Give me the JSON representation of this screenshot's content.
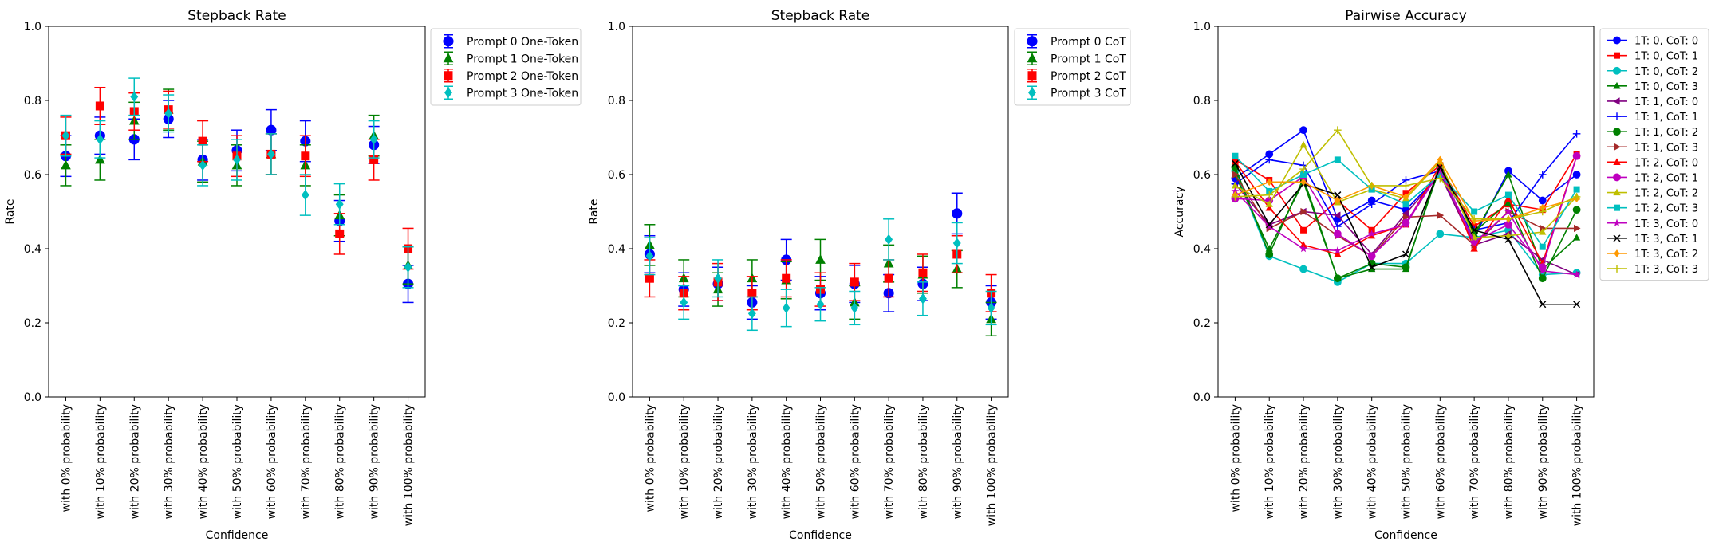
{
  "chart_data": [
    {
      "type": "scatter",
      "title": "Stepback Rate",
      "xlabel": "Confidence",
      "ylabel": "Rate",
      "ylim": [
        0,
        1
      ],
      "yticks": [
        "0.0",
        "0.2",
        "0.4",
        "0.6",
        "0.8",
        "1.0"
      ],
      "legend_position": "outside-right",
      "error_bars": true,
      "categories": [
        "with 0% probability",
        "with 10% probability",
        "with 20% probability",
        "with 30% probability",
        "with 40% probability",
        "with 50% probability",
        "with 60% probability",
        "with 70% probability",
        "with 80% probability",
        "with 90% probability",
        "with 100% probability"
      ],
      "series": [
        {
          "name": "Prompt 0 One-Token",
          "color": "#0000ff",
          "marker": "circle",
          "values": [
            0.65,
            0.705,
            0.695,
            0.75,
            0.64,
            0.665,
            0.72,
            0.69,
            0.475,
            0.68,
            0.305
          ],
          "errors": [
            0.055,
            0.05,
            0.055,
            0.05,
            0.055,
            0.055,
            0.055,
            0.055,
            0.055,
            0.05,
            0.05
          ]
        },
        {
          "name": "Prompt 1 One-Token",
          "color": "#008000",
          "marker": "triangle",
          "values": [
            0.625,
            0.64,
            0.745,
            0.775,
            0.635,
            0.625,
            0.655,
            0.625,
            0.49,
            0.705,
            0.355
          ],
          "errors": [
            0.055,
            0.055,
            0.05,
            0.055,
            0.055,
            0.055,
            0.055,
            0.055,
            0.055,
            0.055,
            0.05
          ]
        },
        {
          "name": "Prompt 2 One-Token",
          "color": "#ff0000",
          "marker": "square",
          "values": [
            0.705,
            0.785,
            0.77,
            0.775,
            0.69,
            0.65,
            0.655,
            0.65,
            0.44,
            0.64,
            0.4
          ],
          "errors": [
            0.05,
            0.05,
            0.05,
            0.05,
            0.055,
            0.055,
            0.055,
            0.055,
            0.055,
            0.055,
            0.055
          ]
        },
        {
          "name": "Prompt 3 One-Token",
          "color": "#00bfbf",
          "marker": "diamond",
          "values": [
            0.705,
            0.695,
            0.81,
            0.765,
            0.625,
            0.64,
            0.655,
            0.545,
            0.52,
            0.695,
            0.35
          ],
          "errors": [
            0.055,
            0.05,
            0.05,
            0.05,
            0.055,
            0.055,
            0.055,
            0.055,
            0.055,
            0.05,
            0.055
          ]
        }
      ]
    },
    {
      "type": "scatter",
      "title": "Stepback Rate",
      "xlabel": "Confidence",
      "ylabel": "Rate",
      "ylim": [
        0,
        1
      ],
      "yticks": [
        "0.0",
        "0.2",
        "0.4",
        "0.6",
        "0.8",
        "1.0"
      ],
      "legend_position": "outside-right",
      "error_bars": true,
      "categories": [
        "with 0% probability",
        "with 10% probability",
        "with 20% probability",
        "with 30% probability",
        "with 40% probability",
        "with 50% probability",
        "with 60% probability",
        "with 70% probability",
        "with 80% probability",
        "with 90% probability",
        "with 100% probability"
      ],
      "series": [
        {
          "name": "Prompt 0 CoT",
          "color": "#0000ff",
          "marker": "circle",
          "values": [
            0.385,
            0.29,
            0.305,
            0.255,
            0.37,
            0.28,
            0.305,
            0.28,
            0.305,
            0.495,
            0.255
          ],
          "errors": [
            0.05,
            0.045,
            0.045,
            0.045,
            0.055,
            0.045,
            0.05,
            0.05,
            0.045,
            0.055,
            0.045
          ]
        },
        {
          "name": "Prompt 1 CoT",
          "color": "#008000",
          "marker": "triangle",
          "values": [
            0.41,
            0.32,
            0.29,
            0.32,
            0.315,
            0.37,
            0.255,
            0.36,
            0.33,
            0.345,
            0.21
          ],
          "errors": [
            0.055,
            0.05,
            0.045,
            0.05,
            0.05,
            0.055,
            0.045,
            0.05,
            0.05,
            0.05,
            0.045
          ]
        },
        {
          "name": "Prompt 2 CoT",
          "color": "#ff0000",
          "marker": "square",
          "values": [
            0.32,
            0.28,
            0.31,
            0.28,
            0.32,
            0.29,
            0.31,
            0.32,
            0.335,
            0.385,
            0.28
          ],
          "errors": [
            0.05,
            0.045,
            0.05,
            0.045,
            0.05,
            0.045,
            0.05,
            0.05,
            0.05,
            0.05,
            0.05
          ]
        },
        {
          "name": "Prompt 3 CoT",
          "color": "#00bfbf",
          "marker": "diamond",
          "values": [
            0.38,
            0.255,
            0.32,
            0.225,
            0.24,
            0.25,
            0.24,
            0.425,
            0.265,
            0.415,
            0.24
          ],
          "errors": [
            0.05,
            0.045,
            0.05,
            0.045,
            0.05,
            0.045,
            0.045,
            0.055,
            0.045,
            0.055,
            0.045
          ]
        }
      ]
    },
    {
      "type": "line",
      "title": "Pairwise Accuracy",
      "xlabel": "Confidence",
      "ylabel": "Accuracy",
      "ylim": [
        0,
        1
      ],
      "yticks": [
        "0.0",
        "0.2",
        "0.4",
        "0.6",
        "0.8",
        "1.0"
      ],
      "legend_position": "outside-right",
      "categories": [
        "with 0% probability",
        "with 10% probability",
        "with 20% probability",
        "with 30% probability",
        "with 40% probability",
        "with 50% probability",
        "with 60% probability",
        "with 70% probability",
        "with 80% probability",
        "with 90% probability",
        "with 100% probability"
      ],
      "series": [
        {
          "name": "1T: 0, CoT: 0",
          "color": "#0000ff",
          "marker": "circle",
          "values": [
            0.59,
            0.655,
            0.72,
            0.48,
            0.53,
            0.505,
            0.6,
            0.43,
            0.61,
            0.53,
            0.6
          ]
        },
        {
          "name": "1T: 0, CoT: 1",
          "color": "#ff0000",
          "marker": "square",
          "values": [
            0.64,
            0.585,
            0.45,
            0.53,
            0.45,
            0.55,
            0.625,
            0.46,
            0.52,
            0.505,
            0.655
          ]
        },
        {
          "name": "1T: 0, CoT: 2",
          "color": "#00bfbf",
          "marker": "circle",
          "values": [
            0.61,
            0.38,
            0.345,
            0.31,
            0.36,
            0.36,
            0.44,
            0.43,
            0.45,
            0.33,
            0.335
          ]
        },
        {
          "name": "1T: 0, CoT: 3",
          "color": "#008000",
          "marker": "triangle",
          "values": [
            0.6,
            0.4,
            0.58,
            0.32,
            0.345,
            0.345,
            0.63,
            0.44,
            0.6,
            0.345,
            0.43
          ]
        },
        {
          "name": "1T: 1, CoT: 0",
          "color": "#800080",
          "marker": "triangle-left",
          "values": [
            0.575,
            0.465,
            0.5,
            0.49,
            0.385,
            0.495,
            0.6,
            0.41,
            0.44,
            0.37,
            0.33
          ]
        },
        {
          "name": "1T: 1, CoT: 1",
          "color": "#0000ff",
          "marker": "plus",
          "values": [
            0.575,
            0.64,
            0.625,
            0.46,
            0.52,
            0.585,
            0.61,
            0.45,
            0.47,
            0.6,
            0.71
          ]
        },
        {
          "name": "1T: 1, CoT: 2",
          "color": "#008000",
          "marker": "circle",
          "values": [
            0.62,
            0.385,
            0.59,
            0.32,
            0.36,
            0.35,
            0.62,
            0.445,
            0.525,
            0.32,
            0.505
          ]
        },
        {
          "name": "1T: 1, CoT: 3",
          "color": "#a52a2a",
          "marker": "triangle-right",
          "values": [
            0.6,
            0.455,
            0.5,
            0.435,
            0.38,
            0.485,
            0.49,
            0.41,
            0.5,
            0.455,
            0.455
          ]
        },
        {
          "name": "1T: 2, CoT: 0",
          "color": "#ff0000",
          "marker": "triangle",
          "values": [
            0.635,
            0.51,
            0.41,
            0.385,
            0.435,
            0.465,
            0.625,
            0.4,
            0.535,
            0.36,
            0.65
          ]
        },
        {
          "name": "1T: 2, CoT: 1",
          "color": "#bf00bf",
          "marker": "circle",
          "values": [
            0.535,
            0.53,
            0.595,
            0.44,
            0.38,
            0.47,
            0.61,
            0.42,
            0.465,
            0.35,
            0.65
          ]
        },
        {
          "name": "1T: 2, CoT: 2",
          "color": "#bfbf00",
          "marker": "triangle",
          "values": [
            0.57,
            0.52,
            0.68,
            0.525,
            0.56,
            0.535,
            0.635,
            0.43,
            0.435,
            0.445,
            0.54
          ]
        },
        {
          "name": "1T: 2, CoT: 3",
          "color": "#00bfbf",
          "marker": "square",
          "values": [
            0.65,
            0.555,
            0.6,
            0.64,
            0.56,
            0.52,
            0.6,
            0.5,
            0.545,
            0.405,
            0.56
          ]
        },
        {
          "name": "1T: 3, CoT: 0",
          "color": "#bf00bf",
          "marker": "star",
          "values": [
            0.555,
            0.46,
            0.4,
            0.395,
            0.44,
            0.465,
            0.61,
            0.415,
            0.5,
            0.34,
            0.33
          ]
        },
        {
          "name": "1T: 3, CoT: 1",
          "color": "#000000",
          "marker": "x",
          "values": [
            0.63,
            0.465,
            0.575,
            0.545,
            0.35,
            0.385,
            0.62,
            0.45,
            0.425,
            0.25,
            0.25
          ]
        },
        {
          "name": "1T: 3, CoT: 2",
          "color": "#ff9900",
          "marker": "diamond",
          "values": [
            0.545,
            0.58,
            0.58,
            0.53,
            0.57,
            0.54,
            0.64,
            0.475,
            0.48,
            0.51,
            0.535
          ]
        },
        {
          "name": "1T: 3, CoT: 3",
          "color": "#bfbf00",
          "marker": "plus",
          "values": [
            0.54,
            0.545,
            0.615,
            0.72,
            0.57,
            0.57,
            0.59,
            0.48,
            0.48,
            0.5,
            0.54
          ]
        }
      ]
    }
  ]
}
